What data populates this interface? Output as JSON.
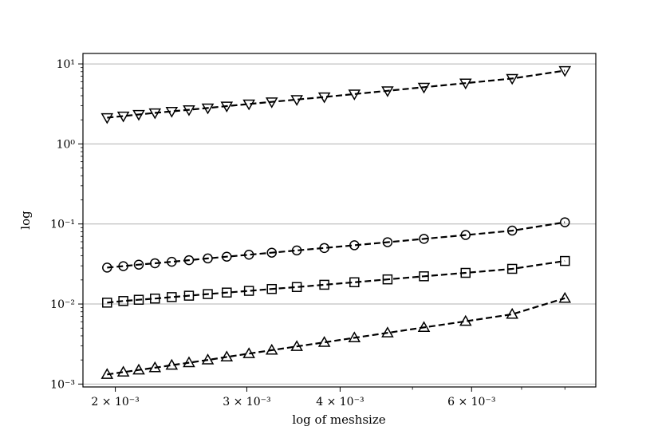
{
  "chart_data": {
    "type": "line",
    "title": "",
    "xlabel": "log of meshsize",
    "ylabel": "log",
    "xscale": "log",
    "yscale": "log",
    "xlim": [
      0.00181,
      0.0088
    ],
    "ylim": [
      0.00092,
      13.5
    ],
    "grid": "y-major",
    "legend": "none",
    "x": [
      0.00195,
      0.00205,
      0.00215,
      0.00226,
      0.00238,
      0.00251,
      0.00266,
      0.00282,
      0.00302,
      0.00324,
      0.0035,
      0.00381,
      0.00418,
      0.00463,
      0.00518,
      0.00589,
      0.0068,
      0.008
    ],
    "x_ticks": [
      {
        "value": 0.002,
        "label": "2 × 10⁻³"
      },
      {
        "value": 0.003,
        "label": "3 × 10⁻³"
      },
      {
        "value": 0.004,
        "label": "4 × 10⁻³"
      },
      {
        "value": 0.006,
        "label": "6 × 10⁻³"
      }
    ],
    "x_minor_ticks": [
      0.005,
      0.007,
      0.008
    ],
    "y_ticks": [
      {
        "value": 0.001,
        "label": "10⁻³"
      },
      {
        "value": 0.01,
        "label": "10⁻²"
      },
      {
        "value": 0.1,
        "label": "10⁻¹"
      },
      {
        "value": 1,
        "label": "10⁰"
      },
      {
        "value": 10,
        "label": "10¹"
      }
    ],
    "series": [
      {
        "marker": "triangle-down",
        "values": [
          2.13,
          2.23,
          2.33,
          2.44,
          2.55,
          2.67,
          2.81,
          2.97,
          3.15,
          3.35,
          3.58,
          3.86,
          4.2,
          4.61,
          5.11,
          5.75,
          6.57,
          8.25
        ]
      },
      {
        "marker": "circle",
        "values": [
          0.0285,
          0.0297,
          0.031,
          0.0323,
          0.0337,
          0.0353,
          0.0371,
          0.039,
          0.0413,
          0.0438,
          0.0467,
          0.0501,
          0.0542,
          0.0592,
          0.0652,
          0.0728,
          0.0826,
          0.105
        ]
      },
      {
        "marker": "square",
        "values": [
          0.0104,
          0.0109,
          0.0113,
          0.0117,
          0.0122,
          0.0127,
          0.0133,
          0.0139,
          0.0146,
          0.0154,
          0.0163,
          0.0174,
          0.0187,
          0.0203,
          0.0222,
          0.0245,
          0.0275,
          0.0345
        ]
      },
      {
        "marker": "triangle-up",
        "values": [
          0.00132,
          0.00141,
          0.0015,
          0.0016,
          0.00172,
          0.00185,
          0.002,
          0.00218,
          0.0024,
          0.00265,
          0.00295,
          0.00332,
          0.00378,
          0.00436,
          0.0051,
          0.00608,
          0.00745,
          0.0118
        ]
      }
    ]
  }
}
